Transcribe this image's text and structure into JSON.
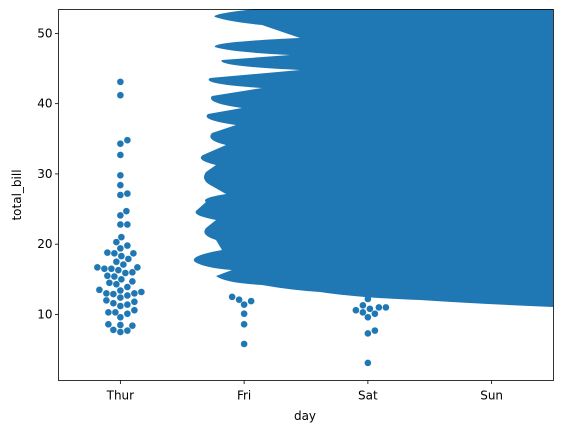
{
  "chart_data": {
    "type": "swarm",
    "x_label": "day",
    "y_label": "total_bill",
    "categories": [
      "Thur",
      "Fri",
      "Sat",
      "Sun"
    ],
    "color": "#1f77b4",
    "values": [
      [
        43.1,
        41.2,
        34.8,
        34.3,
        32.7,
        29.8,
        28.4,
        27.2,
        27.0,
        24.7,
        24.1,
        22.8,
        22.8,
        21.0,
        20.3,
        19.8,
        19.4,
        18.8,
        18.7,
        18.7,
        18.3,
        17.9,
        17.5,
        17.1,
        16.7,
        16.7,
        16.5,
        16.5,
        16.3,
        16.0,
        15.9,
        15.5,
        15.4,
        15.0,
        14.7,
        14.5,
        14.3,
        13.9,
        13.5,
        13.4,
        13.2,
        13.0,
        13.0,
        12.9,
        12.7,
        12.4,
        12.0,
        11.8,
        11.6,
        11.4,
        11.2,
        10.6,
        10.3,
        10.3,
        10.1,
        9.6,
        8.6,
        8.5,
        8.4,
        7.8,
        7.7,
        7.5
      ],
      [
        12.5,
        12.1,
        11.9,
        11.4,
        10.1,
        8.6,
        5.8
      ],
      [
        12.2,
        11.3,
        11.0,
        11.0,
        10.8,
        10.6,
        10.3,
        10.1,
        9.6,
        7.7,
        7.3,
        3.1
      ],
      []
    ],
    "ylim": [
      0.6,
      53.4
    ],
    "yticks": [
      10,
      20,
      30,
      40,
      50
    ]
  }
}
